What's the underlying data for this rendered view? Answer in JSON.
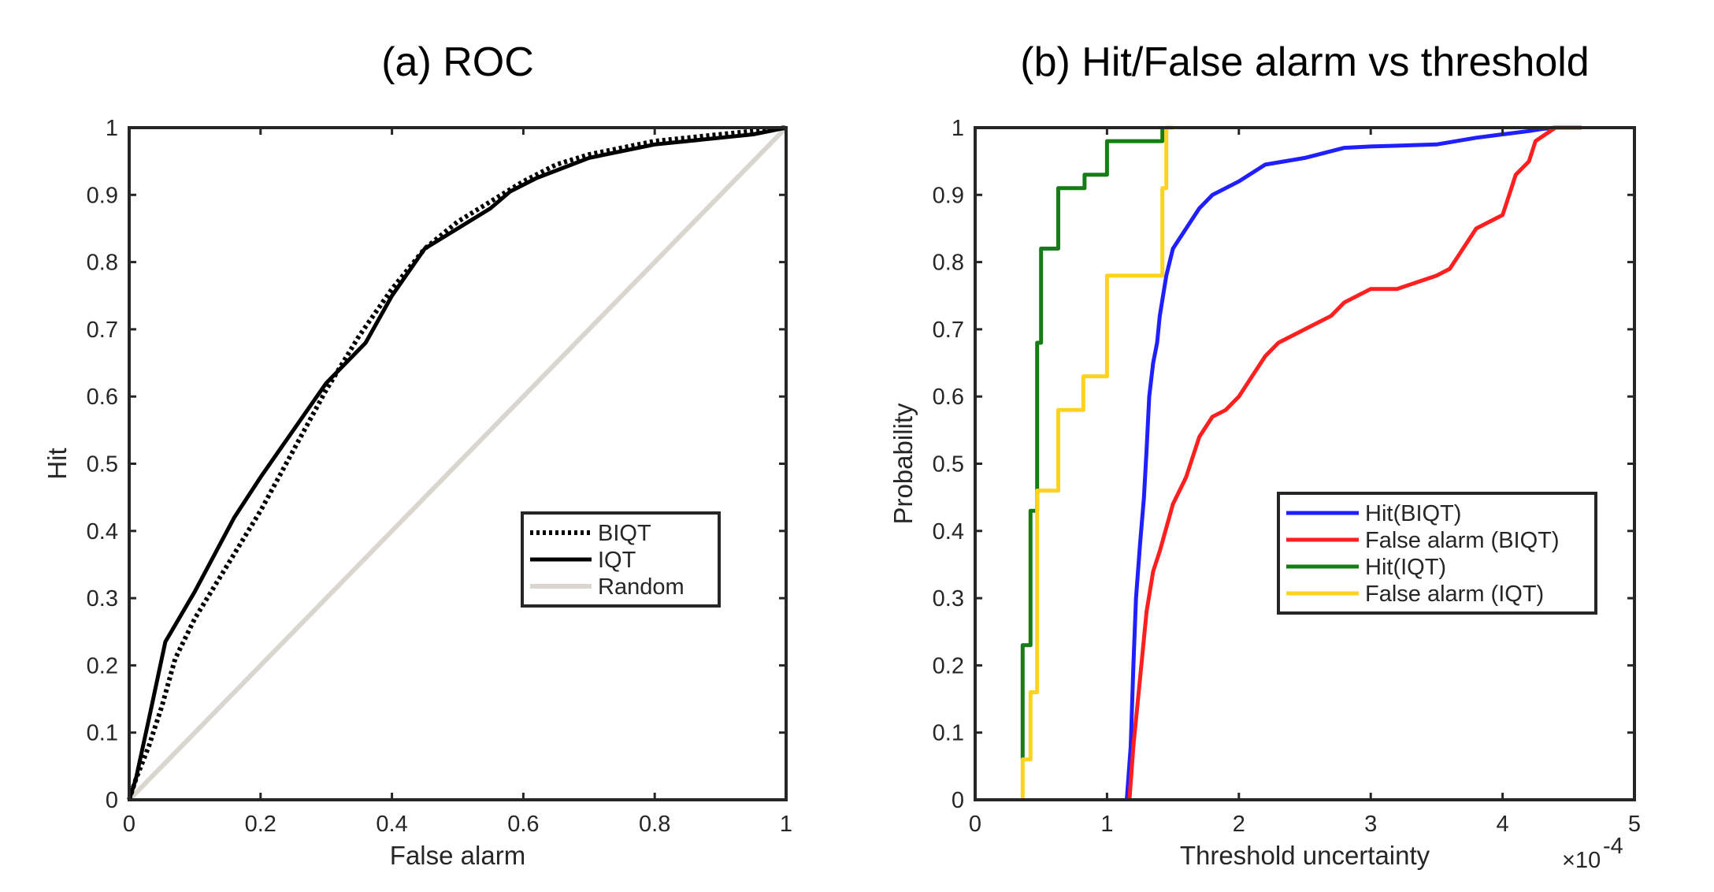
{
  "chart_data": [
    {
      "type": "line",
      "title": "(a) ROC",
      "xlabel": "False alarm",
      "ylabel": "Hit",
      "xlim": [
        0,
        1
      ],
      "ylim": [
        0,
        1
      ],
      "xticks": [
        0,
        0.2,
        0.4,
        0.6,
        0.8,
        1
      ],
      "xtick_labels": [
        "0",
        "0.2",
        "0.4",
        "0.6",
        "0.8",
        "1"
      ],
      "yticks": [
        0,
        0.1,
        0.2,
        0.3,
        0.4,
        0.5,
        0.6,
        0.7,
        0.8,
        0.9,
        1
      ],
      "ytick_labels": [
        "0",
        "0.1",
        "0.2",
        "0.3",
        "0.4",
        "0.5",
        "0.6",
        "0.7",
        "0.8",
        "0.9",
        "1"
      ],
      "grid": false,
      "legend_position": "center-right",
      "series": [
        {
          "name": "BIQT",
          "color": "#000000",
          "style": "dotted",
          "x": [
            0,
            0.01,
            0.03,
            0.05,
            0.07,
            0.1,
            0.15,
            0.2,
            0.25,
            0.3,
            0.35,
            0.4,
            0.45,
            0.5,
            0.55,
            0.6,
            0.65,
            0.7,
            0.75,
            0.8,
            0.85,
            0.9,
            0.95,
            1
          ],
          "y": [
            0,
            0.03,
            0.08,
            0.14,
            0.21,
            0.27,
            0.35,
            0.43,
            0.52,
            0.61,
            0.69,
            0.76,
            0.82,
            0.86,
            0.89,
            0.92,
            0.945,
            0.96,
            0.97,
            0.98,
            0.985,
            0.99,
            0.995,
            1
          ]
        },
        {
          "name": "IQT",
          "color": "#000000",
          "style": "solid",
          "x": [
            0,
            0.01,
            0.03,
            0.055,
            0.1,
            0.16,
            0.2,
            0.25,
            0.3,
            0.36,
            0.4,
            0.45,
            0.5,
            0.55,
            0.58,
            0.62,
            0.7,
            0.8,
            0.9,
            0.95,
            1
          ],
          "y": [
            0,
            0.03,
            0.12,
            0.235,
            0.31,
            0.42,
            0.48,
            0.55,
            0.62,
            0.68,
            0.75,
            0.82,
            0.85,
            0.88,
            0.905,
            0.925,
            0.955,
            0.975,
            0.985,
            0.99,
            1
          ]
        },
        {
          "name": "Random",
          "color": "#d9d6d0",
          "style": "solid",
          "x": [
            0,
            1
          ],
          "y": [
            0,
            1
          ]
        }
      ]
    },
    {
      "type": "line",
      "title": "(b) Hit/False alarm vs threshold",
      "xlabel": "Threshold uncertainty",
      "ylabel": "Probability",
      "exponent_label": "×10",
      "exponent_power": "-4",
      "xlim": [
        0,
        5
      ],
      "ylim": [
        0,
        1
      ],
      "xticks": [
        0,
        1,
        2,
        3,
        4,
        5
      ],
      "xtick_labels": [
        "0",
        "1",
        "2",
        "3",
        "4",
        "5"
      ],
      "yticks": [
        0,
        0.1,
        0.2,
        0.3,
        0.4,
        0.5,
        0.6,
        0.7,
        0.8,
        0.9,
        1
      ],
      "ytick_labels": [
        "0",
        "0.1",
        "0.2",
        "0.3",
        "0.4",
        "0.5",
        "0.6",
        "0.7",
        "0.8",
        "0.9",
        "1"
      ],
      "grid": false,
      "legend_position": "center-right",
      "series": [
        {
          "name": "Hit(BIQT)",
          "color": "#1f1fff",
          "style": "solid",
          "x": [
            1.15,
            1.18,
            1.2,
            1.22,
            1.25,
            1.28,
            1.3,
            1.32,
            1.35,
            1.38,
            1.4,
            1.45,
            1.5,
            1.6,
            1.7,
            1.8,
            2.0,
            2.2,
            2.5,
            2.8,
            3.0,
            3.5,
            3.8,
            4.0,
            4.2,
            4.3,
            4.4
          ],
          "y": [
            0,
            0.08,
            0.2,
            0.3,
            0.38,
            0.45,
            0.52,
            0.6,
            0.65,
            0.68,
            0.72,
            0.78,
            0.82,
            0.85,
            0.88,
            0.9,
            0.92,
            0.945,
            0.955,
            0.97,
            0.972,
            0.975,
            0.985,
            0.99,
            0.995,
            0.998,
            1
          ]
        },
        {
          "name": "False alarm (BIQT)",
          "color": "#ff1f1f",
          "style": "solid",
          "x": [
            1.17,
            1.2,
            1.25,
            1.3,
            1.35,
            1.4,
            1.5,
            1.6,
            1.7,
            1.8,
            1.9,
            2.0,
            2.1,
            2.2,
            2.3,
            2.5,
            2.7,
            2.8,
            3.0,
            3.2,
            3.5,
            3.6,
            3.7,
            3.8,
            3.9,
            4.0,
            4.05,
            4.1,
            4.2,
            4.25,
            4.4,
            4.6
          ],
          "y": [
            0,
            0.08,
            0.18,
            0.28,
            0.34,
            0.37,
            0.44,
            0.48,
            0.54,
            0.57,
            0.58,
            0.6,
            0.63,
            0.66,
            0.68,
            0.7,
            0.72,
            0.74,
            0.76,
            0.76,
            0.78,
            0.79,
            0.82,
            0.85,
            0.86,
            0.87,
            0.9,
            0.93,
            0.95,
            0.98,
            1,
            1
          ]
        },
        {
          "name": "Hit(IQT)",
          "color": "#167d16",
          "style": "step",
          "x": [
            0.36,
            0.36,
            0.42,
            0.42,
            0.47,
            0.47,
            0.5,
            0.5,
            0.63,
            0.63,
            0.83,
            0.83,
            1.0,
            1.0,
            1.42,
            1.42
          ],
          "y": [
            0.06,
            0.23,
            0.23,
            0.43,
            0.43,
            0.68,
            0.68,
            0.82,
            0.82,
            0.91,
            0.91,
            0.93,
            0.93,
            0.98,
            0.98,
            1
          ]
        },
        {
          "name": "False alarm (IQT)",
          "color": "#ffd21f",
          "style": "step",
          "x": [
            0.36,
            0.36,
            0.42,
            0.42,
            0.47,
            0.47,
            0.52,
            0.52,
            0.63,
            0.63,
            0.82,
            0.82,
            1.0,
            1.0,
            1.42,
            1.42,
            1.45,
            1.45,
            1.5
          ],
          "y": [
            0,
            0.06,
            0.06,
            0.16,
            0.16,
            0.46,
            0.46,
            0.46,
            0.46,
            0.58,
            0.58,
            0.63,
            0.63,
            0.78,
            0.78,
            0.91,
            0.91,
            1,
            1
          ]
        }
      ]
    }
  ]
}
